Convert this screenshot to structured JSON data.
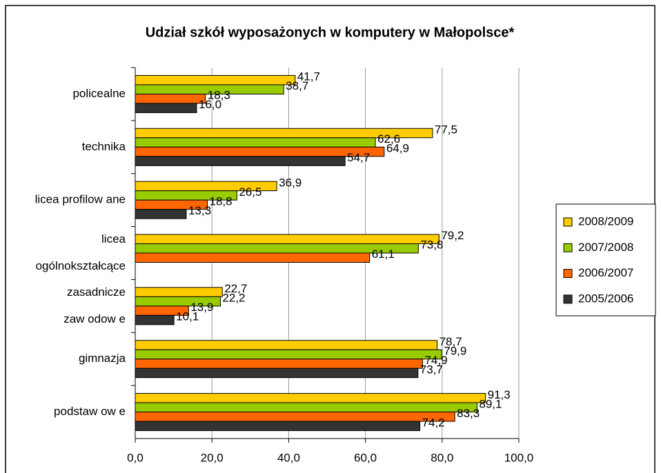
{
  "chart_data": {
    "type": "bar",
    "orientation": "horizontal",
    "title": "Udział szkół wyposażonych w komputery w Małopolsce*",
    "categories": [
      [
        "policealne"
      ],
      [
        "technika"
      ],
      [
        "licea profilow ane"
      ],
      [
        "licea",
        "ogólnokształcące"
      ],
      [
        "zasadnicze",
        "zaw odow e"
      ],
      [
        "gimnazja"
      ],
      [
        "podstaw ow e"
      ]
    ],
    "series": [
      {
        "name": "2008/2009",
        "color": "#ffcc00",
        "values": [
          41.7,
          77.5,
          36.9,
          79.2,
          22.7,
          78.7,
          91.3
        ],
        "value_labels": [
          "41,7",
          "77,5",
          "36,9",
          "79,2",
          "22,7",
          "78,7",
          "91,3"
        ]
      },
      {
        "name": "2007/2008",
        "color": "#99cc00",
        "values": [
          38.7,
          62.6,
          26.5,
          73.8,
          22.2,
          79.9,
          89.1
        ],
        "value_labels": [
          "38,7",
          "62,6",
          "26,5",
          "73,8",
          "22,2",
          "79,9",
          "89,1"
        ]
      },
      {
        "name": "2006/2007",
        "color": "#ff6600",
        "values": [
          18.3,
          64.9,
          18.8,
          61.1,
          13.9,
          74.9,
          83.3
        ],
        "value_labels": [
          "18,3",
          "64,9",
          "18,8",
          "61,1",
          "13,9",
          "74,9",
          "83,3"
        ]
      },
      {
        "name": "2005/2006",
        "color": "#333333",
        "values": [
          16.0,
          54.7,
          13.3,
          null,
          10.1,
          73.7,
          74.2
        ],
        "value_labels": [
          "16,0",
          "54,7",
          "13,3",
          null,
          "10,1",
          "73,7",
          "74,2"
        ]
      }
    ],
    "xlim": [
      0,
      100
    ],
    "xticks": [
      {
        "value": 0,
        "label": "0,0"
      },
      {
        "value": 20,
        "label": "20,0"
      },
      {
        "value": 40,
        "label": "40,0"
      },
      {
        "value": 60,
        "label": "60,0"
      },
      {
        "value": 80,
        "label": "80,0"
      },
      {
        "value": 100,
        "label": "100,0"
      }
    ],
    "grid": true,
    "legend": "right"
  }
}
